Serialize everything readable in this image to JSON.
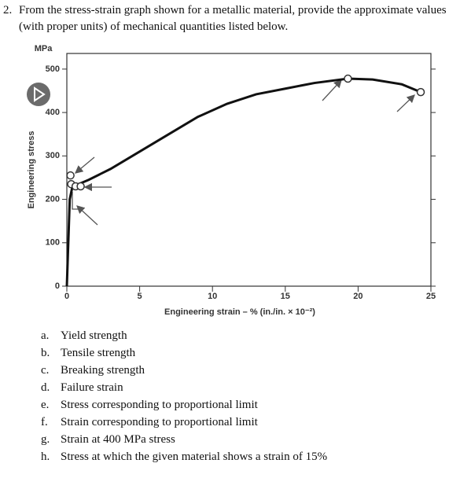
{
  "question": {
    "number": "2.",
    "text": "From the stress-strain graph shown for a metallic material, provide the approximate values (with proper units) of mechanical quantities listed below."
  },
  "chart_data": {
    "type": "line",
    "y_unit": "MPa",
    "y_label": "Engineering stress",
    "x_label": "Engineering strain – % (in./in. × 10⁻²)",
    "x": [
      0,
      0.2,
      0.4,
      0.8,
      1.5,
      3,
      5,
      7,
      9,
      11,
      13,
      15,
      17,
      19.3,
      21,
      23,
      24.3
    ],
    "values": [
      0,
      200,
      232,
      235,
      245,
      270,
      310,
      350,
      390,
      420,
      442,
      455,
      468,
      478,
      476,
      465,
      447
    ],
    "color": "#111111",
    "points": {
      "x": [
        0.25,
        0.3,
        0.6,
        0.95,
        19.3,
        24.3
      ],
      "y": [
        255,
        235,
        230,
        230,
        478,
        447
      ]
    },
    "xlim": [
      0,
      25
    ],
    "ylim": [
      0,
      536
    ],
    "xticks": [
      0,
      5,
      10,
      15,
      20,
      25
    ],
    "yticks": [
      0,
      100,
      200,
      300,
      400,
      500
    ]
  },
  "items": [
    {
      "letter": "a.",
      "text": "Yield strength"
    },
    {
      "letter": "b.",
      "text": "Tensile strength"
    },
    {
      "letter": "c.",
      "text": "Breaking strength"
    },
    {
      "letter": "d.",
      "text": "Failure strain"
    },
    {
      "letter": "e.",
      "text": "Stress corresponding to proportional limit"
    },
    {
      "letter": "f.",
      "text": "Strain corresponding to proportional limit"
    },
    {
      "letter": "g.",
      "text": "Strain at 400 MPa stress"
    },
    {
      "letter": "h.",
      "text": "Stress at which the given material shows a strain of 15%"
    }
  ]
}
